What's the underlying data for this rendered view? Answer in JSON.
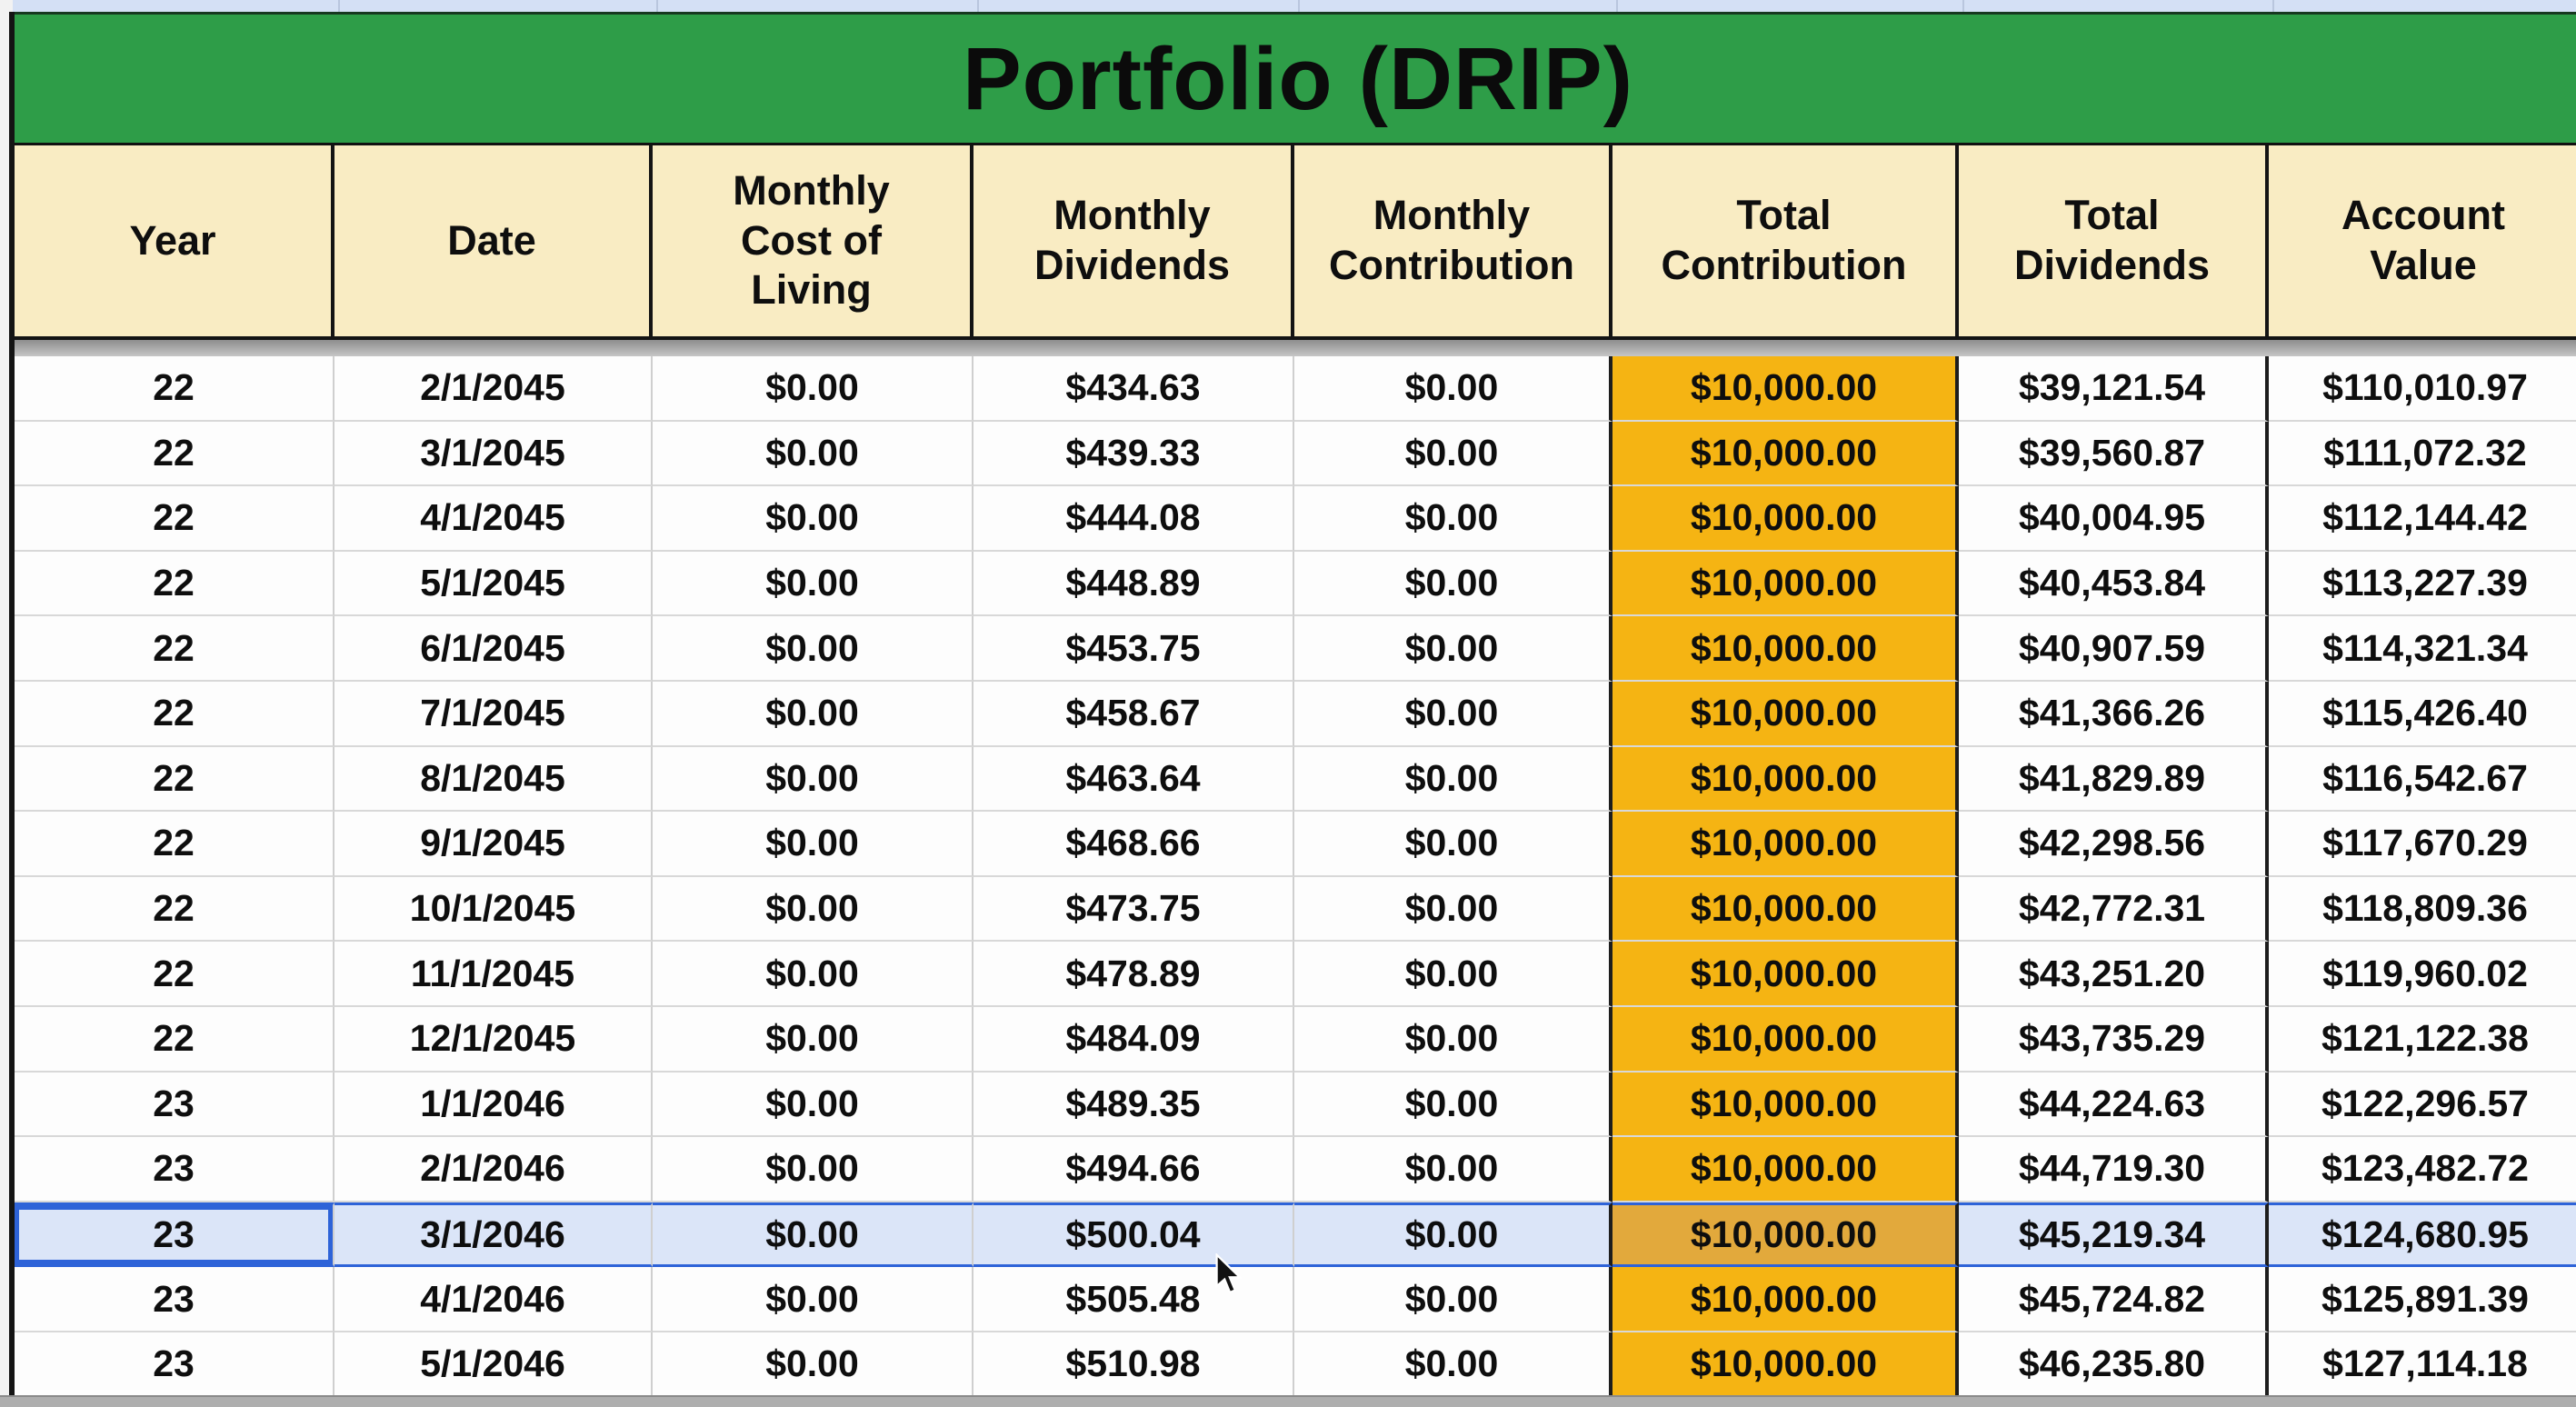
{
  "title": "Portfolio (DRIP)",
  "columns": [
    "Year",
    "Date",
    "Monthly\nCost of\nLiving",
    "Monthly\nDividends",
    "Monthly\nContribution",
    "Total\nContribution",
    "Total\nDividends",
    "Account\nValue"
  ],
  "rows": [
    [
      "22",
      "2/1/2045",
      "$0.00",
      "$434.63",
      "$0.00",
      "$10,000.00",
      "$39,121.54",
      "$110,010.97"
    ],
    [
      "22",
      "3/1/2045",
      "$0.00",
      "$439.33",
      "$0.00",
      "$10,000.00",
      "$39,560.87",
      "$111,072.32"
    ],
    [
      "22",
      "4/1/2045",
      "$0.00",
      "$444.08",
      "$0.00",
      "$10,000.00",
      "$40,004.95",
      "$112,144.42"
    ],
    [
      "22",
      "5/1/2045",
      "$0.00",
      "$448.89",
      "$0.00",
      "$10,000.00",
      "$40,453.84",
      "$113,227.39"
    ],
    [
      "22",
      "6/1/2045",
      "$0.00",
      "$453.75",
      "$0.00",
      "$10,000.00",
      "$40,907.59",
      "$114,321.34"
    ],
    [
      "22",
      "7/1/2045",
      "$0.00",
      "$458.67",
      "$0.00",
      "$10,000.00",
      "$41,366.26",
      "$115,426.40"
    ],
    [
      "22",
      "8/1/2045",
      "$0.00",
      "$463.64",
      "$0.00",
      "$10,000.00",
      "$41,829.89",
      "$116,542.67"
    ],
    [
      "22",
      "9/1/2045",
      "$0.00",
      "$468.66",
      "$0.00",
      "$10,000.00",
      "$42,298.56",
      "$117,670.29"
    ],
    [
      "22",
      "10/1/2045",
      "$0.00",
      "$473.75",
      "$0.00",
      "$10,000.00",
      "$42,772.31",
      "$118,809.36"
    ],
    [
      "22",
      "11/1/2045",
      "$0.00",
      "$478.89",
      "$0.00",
      "$10,000.00",
      "$43,251.20",
      "$119,960.02"
    ],
    [
      "22",
      "12/1/2045",
      "$0.00",
      "$484.09",
      "$0.00",
      "$10,000.00",
      "$43,735.29",
      "$121,122.38"
    ],
    [
      "23",
      "1/1/2046",
      "$0.00",
      "$489.35",
      "$0.00",
      "$10,000.00",
      "$44,224.63",
      "$122,296.57"
    ],
    [
      "23",
      "2/1/2046",
      "$0.00",
      "$494.66",
      "$0.00",
      "$10,000.00",
      "$44,719.30",
      "$123,482.72"
    ],
    [
      "23",
      "3/1/2046",
      "$0.00",
      "$500.04",
      "$0.00",
      "$10,000.00",
      "$45,219.34",
      "$124,680.95"
    ],
    [
      "23",
      "4/1/2046",
      "$0.00",
      "$505.48",
      "$0.00",
      "$10,000.00",
      "$45,724.82",
      "$125,891.39"
    ],
    [
      "23",
      "5/1/2046",
      "$0.00",
      "$510.98",
      "$0.00",
      "$10,000.00",
      "$46,235.80",
      "$127,114.18"
    ]
  ],
  "selected_row_index": 13,
  "highlighted_column_index": 5,
  "icons": {
    "cursor": "arrow-pointer"
  },
  "colors": {
    "banner_green": "#2e9d48",
    "header_beige": "#f9ecc3",
    "highlight_orange": "#f5b413",
    "selected_row_fill": "#dbe5f8",
    "selection_blue": "#2e63d8",
    "gridline_gray": "#cfcfcf",
    "text": "#0e0e0e"
  }
}
